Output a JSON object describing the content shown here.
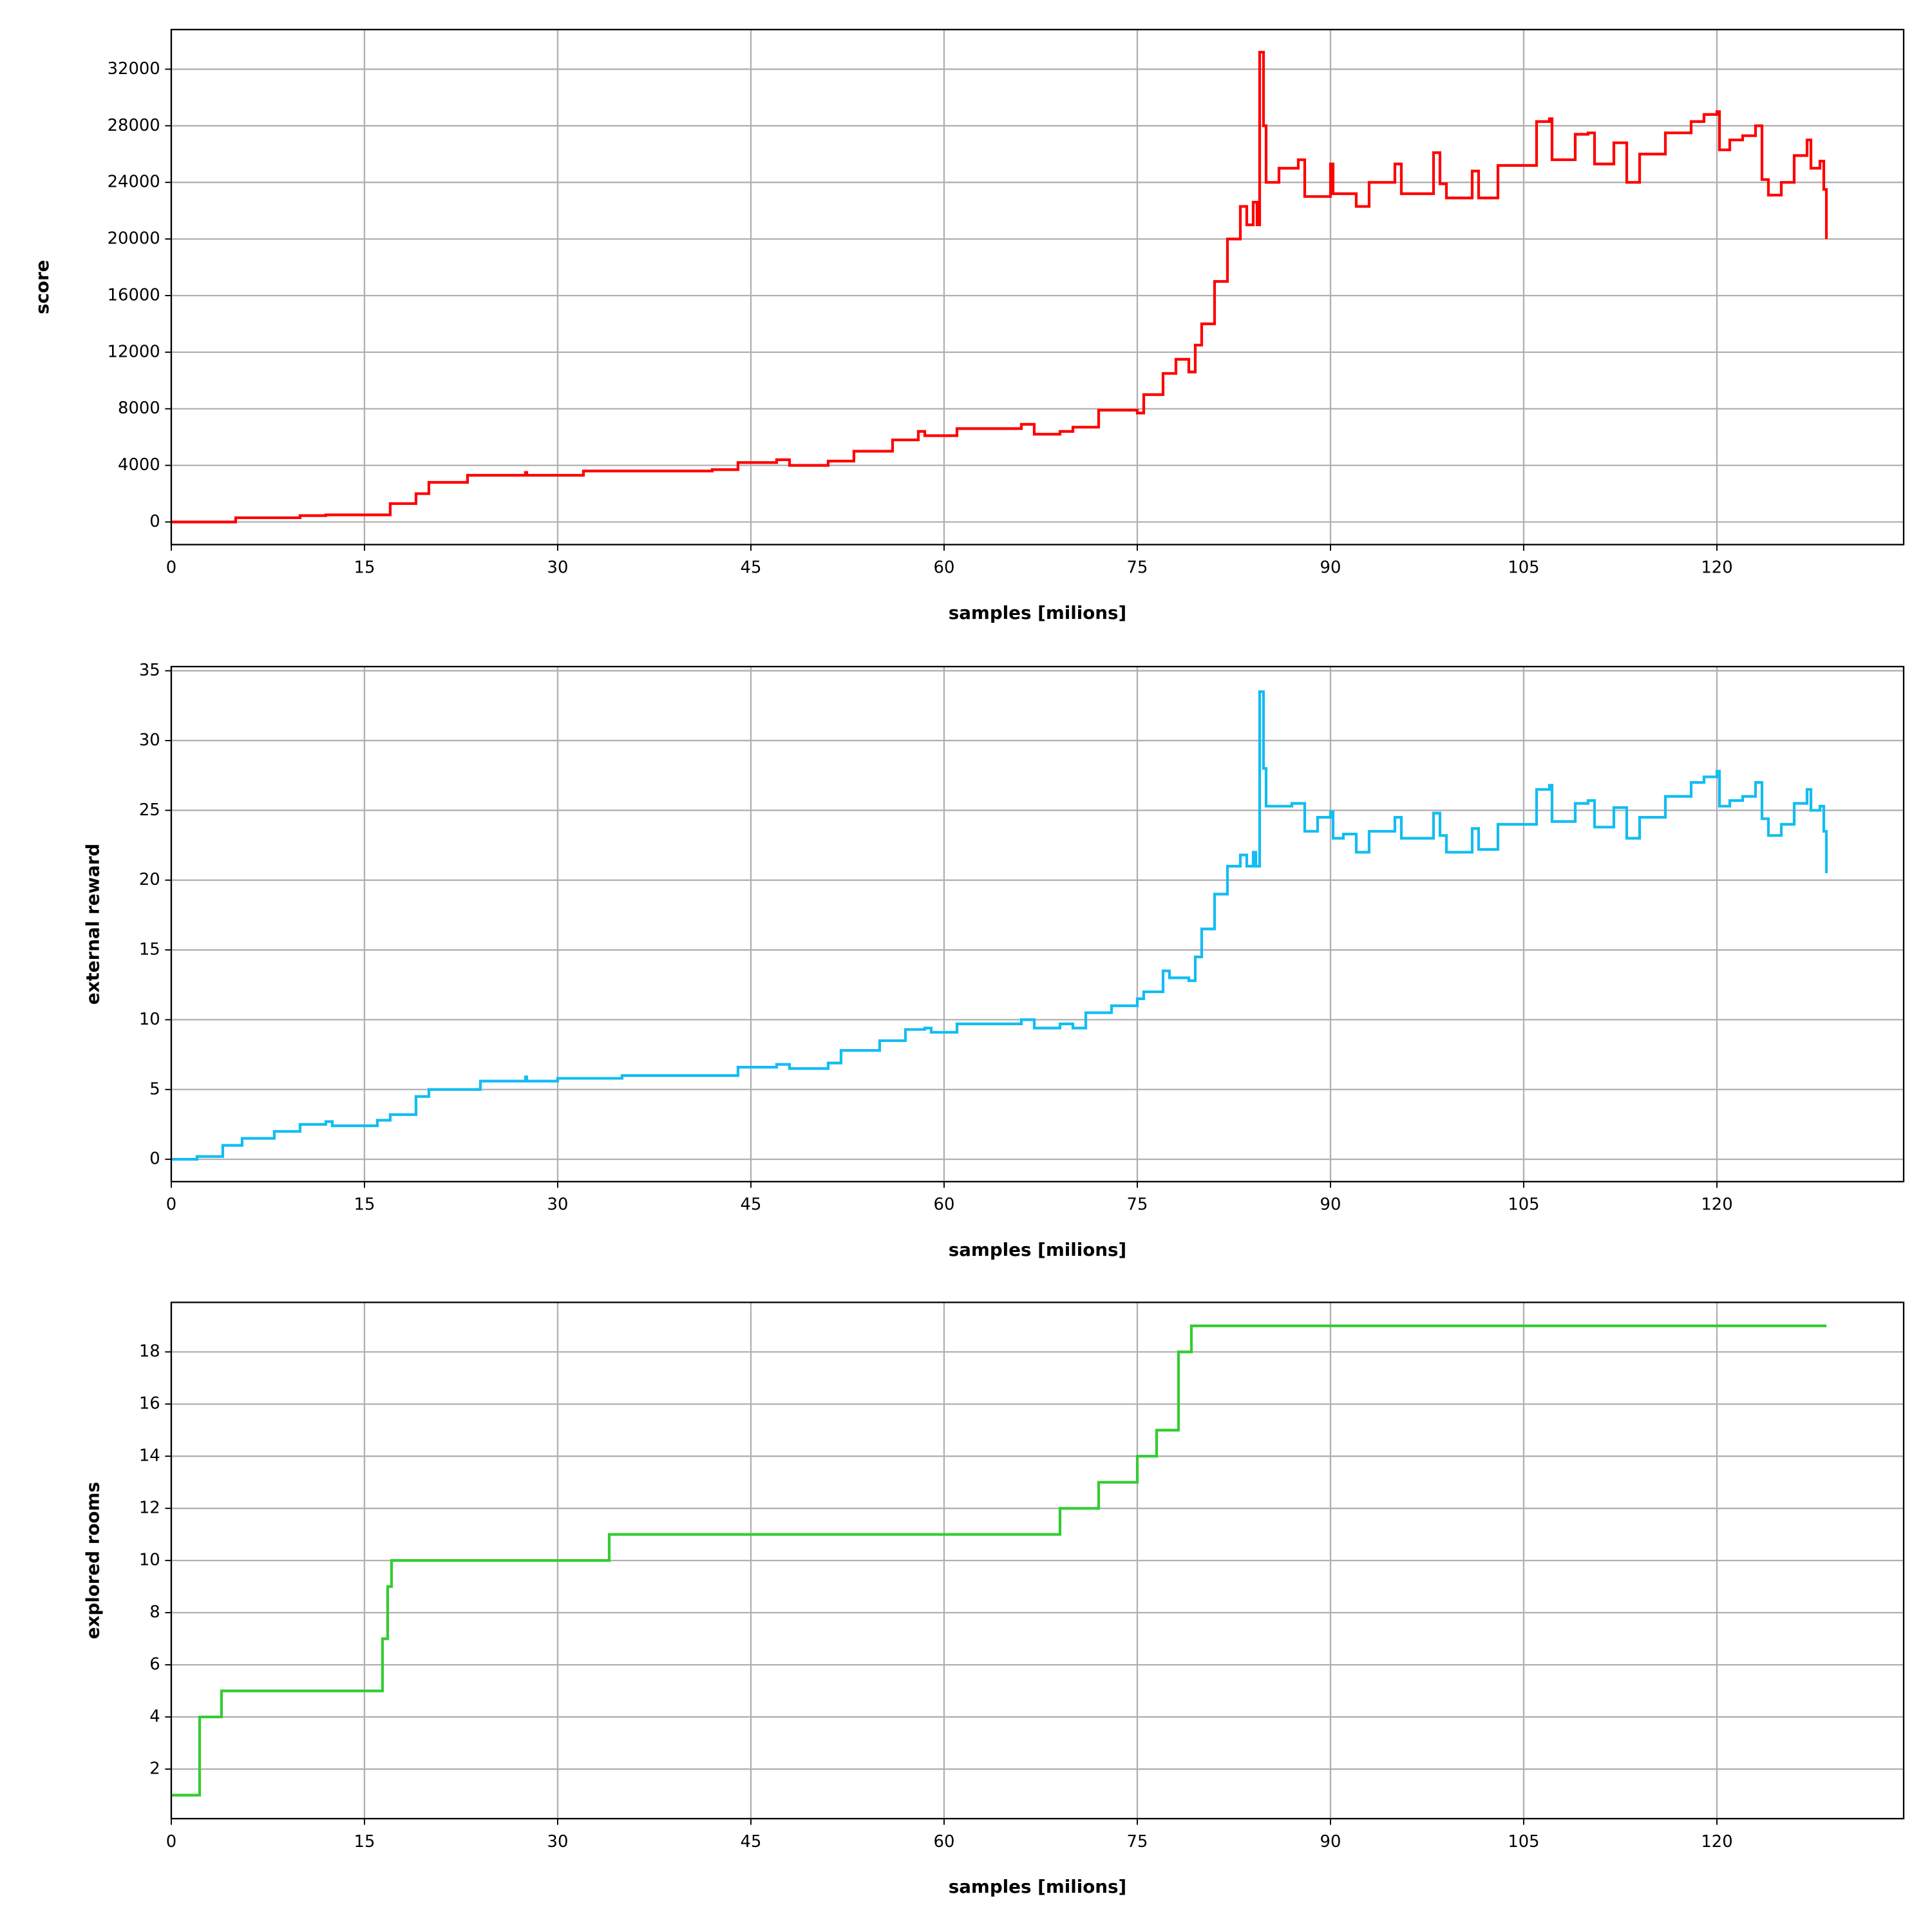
{
  "chart_data": [
    {
      "type": "line",
      "drawstyle": "steps-post",
      "color": "#ff0000",
      "ylabel": "score",
      "xlabel": "samples [milions]",
      "grid": true,
      "xlim": [
        0,
        134.5
      ],
      "ylim": [
        -1600,
        34800
      ],
      "xticks": [
        0,
        15,
        30,
        45,
        60,
        75,
        90,
        105,
        120
      ],
      "yticks": [
        0,
        4000,
        8000,
        12000,
        16000,
        20000,
        24000,
        28000,
        32000
      ],
      "x": [
        0,
        5,
        10,
        12,
        16.3,
        17,
        19,
        20,
        23,
        27.5,
        27.6,
        32,
        42,
        44,
        47,
        48,
        51,
        53,
        56,
        58,
        58.5,
        61,
        66,
        67,
        69,
        70,
        72,
        75,
        75.5,
        77,
        78,
        79,
        79.5,
        80,
        81,
        82,
        83,
        83.5,
        84,
        84.3,
        84.5,
        84.8,
        85,
        86,
        87.5,
        88,
        90,
        90.2,
        92,
        93,
        95,
        95.5,
        98,
        98.5,
        99,
        101,
        101.5,
        103,
        106,
        107,
        107.2,
        109,
        110,
        110.5,
        112,
        113,
        114,
        116,
        118,
        119,
        120,
        120.2,
        121,
        122,
        123,
        123.5,
        124,
        125,
        126,
        127,
        127.3,
        128,
        128.3,
        128.5
      ],
      "values": [
        0,
        300,
        450,
        500,
        500,
        1300,
        2000,
        2800,
        3300,
        3500,
        3300,
        3600,
        3700,
        4200,
        4400,
        4000,
        4300,
        5000,
        5800,
        6400,
        6100,
        6600,
        6900,
        6200,
        6400,
        6700,
        7900,
        7700,
        9000,
        10500,
        11500,
        10600,
        12500,
        14000,
        17000,
        20000,
        22300,
        21000,
        22600,
        21000,
        33200,
        28000,
        24000,
        25000,
        25600,
        23000,
        25300,
        23200,
        22300,
        24000,
        25300,
        23200,
        26100,
        23900,
        22900,
        24800,
        22900,
        25200,
        28300,
        28500,
        25600,
        27400,
        27500,
        25300,
        26800,
        24000,
        26000,
        27500,
        28300,
        28800,
        29000,
        26300,
        27000,
        27300,
        28000,
        24200,
        23100,
        24000,
        25900,
        27000,
        25000,
        25500,
        23500,
        20000
      ]
    },
    {
      "type": "line",
      "drawstyle": "steps-post",
      "color": "#12bdf2",
      "ylabel": "external reward",
      "xlabel": "samples [milions]",
      "grid": true,
      "xlim": [
        0,
        134.5
      ],
      "ylim": [
        -1.6,
        35.3
      ],
      "xticks": [
        0,
        15,
        30,
        45,
        60,
        75,
        90,
        105,
        120
      ],
      "yticks": [
        0,
        5,
        10,
        15,
        20,
        25,
        30,
        35
      ],
      "x": [
        0,
        2,
        4,
        5.5,
        8,
        10,
        12,
        12.5,
        16,
        17,
        19,
        20,
        24,
        27.5,
        27.6,
        30,
        35,
        42,
        44,
        47,
        48,
        51,
        52,
        55,
        57,
        58.5,
        59,
        61,
        66,
        67,
        69,
        70,
        71,
        73,
        75,
        75.5,
        77,
        77.5,
        79,
        79.5,
        80,
        81,
        82,
        83,
        83.5,
        84,
        84.2,
        84.5,
        84.8,
        85,
        87,
        88,
        89,
        90,
        90.2,
        91,
        92,
        93,
        95,
        95.5,
        98,
        98.5,
        99,
        101,
        101.5,
        103,
        106,
        107,
        107.2,
        109,
        110,
        110.5,
        112,
        113,
        114,
        116,
        118,
        119,
        120,
        120.2,
        121,
        122,
        123,
        123.5,
        124,
        125,
        126,
        127,
        127.3,
        128,
        128.3,
        128.5
      ],
      "values": [
        0,
        0.2,
        1,
        1.5,
        2,
        2.5,
        2.7,
        2.4,
        2.8,
        3.2,
        4.5,
        5,
        5.6,
        5.9,
        5.6,
        5.8,
        6,
        6,
        6.6,
        6.8,
        6.5,
        6.9,
        7.8,
        8.5,
        9.3,
        9.4,
        9.1,
        9.7,
        10,
        9.4,
        9.7,
        9.4,
        10.5,
        11,
        11.5,
        12,
        13.5,
        13,
        12.8,
        14.5,
        16.5,
        19,
        21,
        21.8,
        21,
        22,
        21,
        33.5,
        28,
        25.3,
        25.5,
        23.5,
        24.5,
        24.9,
        23,
        23.3,
        22,
        23.5,
        24.5,
        23,
        24.8,
        23.2,
        22,
        23.7,
        22.2,
        24,
        26.5,
        26.8,
        24.2,
        25.5,
        25.7,
        23.8,
        25.2,
        23,
        24.5,
        26,
        27,
        27.4,
        27.8,
        25.3,
        25.7,
        26,
        27,
        24.4,
        23.2,
        24,
        25.5,
        26.5,
        25,
        25.3,
        23.5,
        20.5
      ]
    },
    {
      "type": "line",
      "drawstyle": "steps-post",
      "color": "#33cc33",
      "ylabel": "explored rooms",
      "xlabel": "samples [milions]",
      "grid": true,
      "xlim": [
        0,
        134.5
      ],
      "ylim": [
        0.1,
        19.9
      ],
      "xticks": [
        0,
        15,
        30,
        45,
        60,
        75,
        90,
        105,
        120
      ],
      "yticks": [
        2,
        4,
        6,
        8,
        10,
        12,
        14,
        16,
        18
      ],
      "x": [
        0,
        2.2,
        3.9,
        16.4,
        16.8,
        17.1,
        34,
        69,
        72,
        75,
        76.5,
        78.2,
        79.2,
        128.5
      ],
      "values": [
        1,
        4,
        5,
        7,
        9,
        10,
        11,
        12,
        13,
        14,
        15,
        18,
        19,
        19
      ]
    }
  ]
}
